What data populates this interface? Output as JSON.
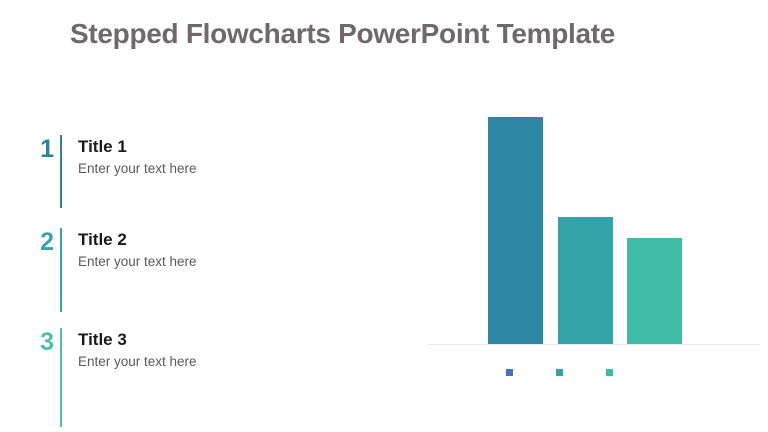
{
  "slide": {
    "title": "Stepped Flowcharts PowerPoint Template",
    "title_color": "#6F696B",
    "background_color": "#FFFFFF"
  },
  "steps": [
    {
      "number": "1",
      "title": "Title 1",
      "body": "Enter your text here",
      "accent_color": "#2E7FA0"
    },
    {
      "number": "2",
      "title": "Title 2",
      "body": "Enter your text here",
      "accent_color": "#3AA2AB"
    },
    {
      "number": "3",
      "title": "Title 3",
      "body": "Enter your text here",
      "accent_color": "#4CC0AA"
    }
  ],
  "chart_data": {
    "type": "bar",
    "categories": [
      "",
      "",
      ""
    ],
    "values": [
      4.3,
      2.4,
      2.0
    ],
    "title": "",
    "xlabel": "",
    "ylabel": "",
    "ylim": [
      0,
      4.3
    ],
    "grid": false,
    "legend_position": "bottom",
    "bar_colors": [
      "#2C87A5",
      "#35A4A8",
      "#3FBCA8"
    ],
    "legend_marker_colors": [
      "#4A72B8",
      "#35A4A8",
      "#3FBCA8"
    ],
    "axis_line_color": "#E9E9E9"
  }
}
